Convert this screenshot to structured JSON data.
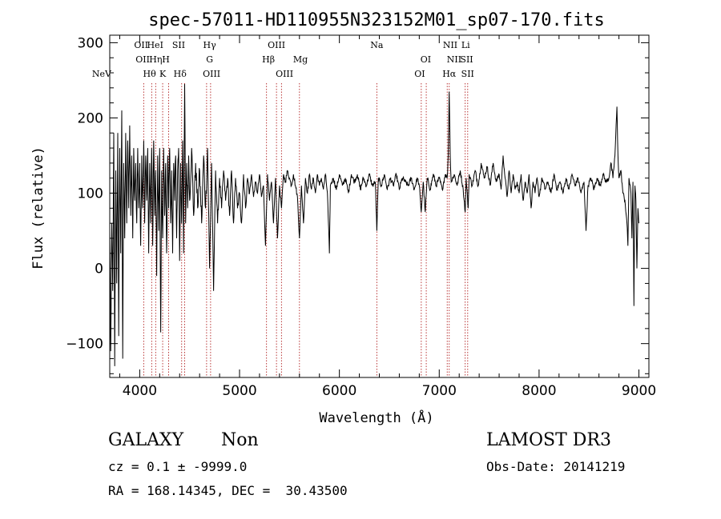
{
  "chart_data": {
    "type": "line",
    "title": "spec-57011-HD110955N323152M01_sp07-170.fits",
    "xlabel": "Wavelength (Å)",
    "ylabel": "Flux (relative)",
    "xlim": [
      3700,
      9100
    ],
    "ylim": [
      -145,
      310
    ],
    "xticks": [
      4000,
      5000,
      6000,
      7000,
      8000,
      9000
    ],
    "yticks": [
      -100,
      0,
      100,
      200,
      300
    ],
    "x_minor_step": 200,
    "y_minor_step": 20,
    "line_color": "#000000",
    "marker_color": "#b22222",
    "lines": [
      {
        "label": "NeV",
        "x": 3426,
        "row": 3
      },
      {
        "label": "OII",
        "x": 4015,
        "row": 1
      },
      {
        "label": "OII",
        "x": 4030,
        "row": 2
      },
      {
        "label": "Hθ",
        "x": 4098,
        "row": 3
      },
      {
        "label": "HeI",
        "x": 4155,
        "row": 1
      },
      {
        "label": "Hη",
        "x": 4160,
        "row": 2
      },
      {
        "label": "K",
        "x": 4230,
        "row": 3
      },
      {
        "label": "H",
        "x": 4262,
        "row": 2
      },
      {
        "label": "SII",
        "x": 4390,
        "row": 1
      },
      {
        "label": "Hδ",
        "x": 4404,
        "row": 3
      },
      {
        "label": "Hγ",
        "x": 4700,
        "row": 1
      },
      {
        "label": "G",
        "x": 4700,
        "row": 2
      },
      {
        "label": "OIII",
        "x": 4720,
        "row": 3
      },
      {
        "label": "OIII",
        "x": 5370,
        "row": 1
      },
      {
        "label": "Hβ",
        "x": 5290,
        "row": 2
      },
      {
        "label": "OIII",
        "x": 5450,
        "row": 3
      },
      {
        "label": "Mg",
        "x": 5610,
        "row": 2
      },
      {
        "label": "Na",
        "x": 6375,
        "row": 1
      },
      {
        "label": "OI",
        "x": 6865,
        "row": 2
      },
      {
        "label": "OI",
        "x": 6805,
        "row": 3
      },
      {
        "label": "NII",
        "x": 7110,
        "row": 1
      },
      {
        "label": "NII",
        "x": 7150,
        "row": 2
      },
      {
        "label": "Hα",
        "x": 7100,
        "row": 3
      },
      {
        "label": "Li",
        "x": 7265,
        "row": 1
      },
      {
        "label": "SII",
        "x": 7275,
        "row": 2
      },
      {
        "label": "SII",
        "x": 7285,
        "row": 3
      }
    ],
    "marker_x": [
      4040,
      4120,
      4160,
      4230,
      4290,
      4420,
      4450,
      4670,
      4710,
      5270,
      5370,
      5420,
      5600,
      6375,
      6820,
      6870,
      7080,
      7100,
      7260,
      7285
    ],
    "spectrum_anchors": [
      [
        3700,
        50
      ],
      [
        3710,
        -110
      ],
      [
        3720,
        60
      ],
      [
        3730,
        -30
      ],
      [
        3740,
        180
      ],
      [
        3750,
        -130
      ],
      [
        3760,
        130
      ],
      [
        3770,
        -20
      ],
      [
        3780,
        180
      ],
      [
        3790,
        -90
      ],
      [
        3800,
        160
      ],
      [
        3810,
        20
      ],
      [
        3820,
        210
      ],
      [
        3830,
        -120
      ],
      [
        3840,
        140
      ],
      [
        3850,
        40
      ],
      [
        3860,
        180
      ],
      [
        3870,
        60
      ],
      [
        3880,
        170
      ],
      [
        3890,
        80
      ],
      [
        3900,
        190
      ],
      [
        3910,
        70
      ],
      [
        3920,
        150
      ],
      [
        3930,
        40
      ],
      [
        3940,
        160
      ],
      [
        3950,
        90
      ],
      [
        3960,
        140
      ],
      [
        3970,
        60
      ],
      [
        3980,
        160
      ],
      [
        3990,
        80
      ],
      [
        4000,
        140
      ],
      [
        4010,
        30
      ],
      [
        4020,
        150
      ],
      [
        4030,
        80
      ],
      [
        4040,
        170
      ],
      [
        4050,
        60
      ],
      [
        4060,
        150
      ],
      [
        4070,
        90
      ],
      [
        4080,
        160
      ],
      [
        4090,
        20
      ],
      [
        4100,
        140
      ],
      [
        4110,
        60
      ],
      [
        4120,
        160
      ],
      [
        4130,
        30
      ],
      [
        4140,
        170
      ],
      [
        4150,
        70
      ],
      [
        4160,
        130
      ],
      [
        4170,
        -10
      ],
      [
        4180,
        150
      ],
      [
        4190,
        50
      ],
      [
        4200,
        160
      ],
      [
        4210,
        -85
      ],
      [
        4220,
        130
      ],
      [
        4230,
        40
      ],
      [
        4240,
        160
      ],
      [
        4250,
        70
      ],
      [
        4260,
        140
      ],
      [
        4270,
        20
      ],
      [
        4280,
        150
      ],
      [
        4290,
        80
      ],
      [
        4300,
        160
      ],
      [
        4310,
        60
      ],
      [
        4320,
        130
      ],
      [
        4330,
        20
      ],
      [
        4340,
        140
      ],
      [
        4350,
        90
      ],
      [
        4360,
        150
      ],
      [
        4370,
        40
      ],
      [
        4380,
        130
      ],
      [
        4390,
        160
      ],
      [
        4400,
        10
      ],
      [
        4410,
        140
      ],
      [
        4420,
        60
      ],
      [
        4430,
        170
      ],
      [
        4440,
        20
      ],
      [
        4450,
        245
      ],
      [
        4460,
        60
      ],
      [
        4470,
        140
      ],
      [
        4480,
        80
      ],
      [
        4490,
        150
      ],
      [
        4500,
        90
      ],
      [
        4520,
        160
      ],
      [
        4540,
        70
      ],
      [
        4560,
        140
      ],
      [
        4580,
        80
      ],
      [
        4600,
        130
      ],
      [
        4620,
        60
      ],
      [
        4640,
        150
      ],
      [
        4660,
        80
      ],
      [
        4680,
        160
      ],
      [
        4700,
        0
      ],
      [
        4720,
        140
      ],
      [
        4740,
        -30
      ],
      [
        4760,
        130
      ],
      [
        4780,
        60
      ],
      [
        4800,
        120
      ],
      [
        4820,
        80
      ],
      [
        4840,
        130
      ],
      [
        4860,
        90
      ],
      [
        4880,
        120
      ],
      [
        4900,
        70
      ],
      [
        4920,
        130
      ],
      [
        4940,
        60
      ],
      [
        4960,
        120
      ],
      [
        4980,
        80
      ],
      [
        5000,
        100
      ],
      [
        5020,
        60
      ],
      [
        5040,
        125
      ],
      [
        5060,
        80
      ],
      [
        5080,
        120
      ],
      [
        5100,
        100
      ],
      [
        5120,
        125
      ],
      [
        5140,
        95
      ],
      [
        5160,
        115
      ],
      [
        5180,
        100
      ],
      [
        5200,
        125
      ],
      [
        5220,
        95
      ],
      [
        5240,
        110
      ],
      [
        5260,
        30
      ],
      [
        5280,
        125
      ],
      [
        5300,
        90
      ],
      [
        5320,
        115
      ],
      [
        5340,
        60
      ],
      [
        5360,
        120
      ],
      [
        5380,
        40
      ],
      [
        5400,
        110
      ],
      [
        5420,
        80
      ],
      [
        5440,
        125
      ],
      [
        5460,
        115
      ],
      [
        5480,
        130
      ],
      [
        5500,
        120
      ],
      [
        5520,
        110
      ],
      [
        5540,
        125
      ],
      [
        5560,
        110
      ],
      [
        5580,
        95
      ],
      [
        5600,
        40
      ],
      [
        5620,
        110
      ],
      [
        5640,
        60
      ],
      [
        5660,
        120
      ],
      [
        5680,
        100
      ],
      [
        5700,
        125
      ],
      [
        5720,
        105
      ],
      [
        5740,
        120
      ],
      [
        5760,
        100
      ],
      [
        5780,
        125
      ],
      [
        5800,
        110
      ],
      [
        5820,
        120
      ],
      [
        5840,
        105
      ],
      [
        5860,
        125
      ],
      [
        5880,
        100
      ],
      [
        5900,
        20
      ],
      [
        5910,
        110
      ],
      [
        5940,
        120
      ],
      [
        5970,
        105
      ],
      [
        6000,
        125
      ],
      [
        6030,
        110
      ],
      [
        6060,
        120
      ],
      [
        6090,
        100
      ],
      [
        6120,
        125
      ],
      [
        6150,
        115
      ],
      [
        6180,
        125
      ],
      [
        6210,
        105
      ],
      [
        6240,
        120
      ],
      [
        6270,
        110
      ],
      [
        6300,
        125
      ],
      [
        6330,
        110
      ],
      [
        6360,
        115
      ],
      [
        6375,
        50
      ],
      [
        6390,
        120
      ],
      [
        6420,
        110
      ],
      [
        6450,
        125
      ],
      [
        6480,
        105
      ],
      [
        6510,
        120
      ],
      [
        6540,
        110
      ],
      [
        6570,
        125
      ],
      [
        6600,
        105
      ],
      [
        6630,
        120
      ],
      [
        6660,
        115
      ],
      [
        6690,
        110
      ],
      [
        6720,
        120
      ],
      [
        6750,
        105
      ],
      [
        6780,
        120
      ],
      [
        6800,
        110
      ],
      [
        6820,
        75
      ],
      [
        6840,
        115
      ],
      [
        6860,
        75
      ],
      [
        6880,
        120
      ],
      [
        6910,
        105
      ],
      [
        6940,
        125
      ],
      [
        6970,
        110
      ],
      [
        7000,
        120
      ],
      [
        7030,
        105
      ],
      [
        7060,
        125
      ],
      [
        7080,
        120
      ],
      [
        7090,
        150
      ],
      [
        7100,
        235
      ],
      [
        7110,
        150
      ],
      [
        7120,
        115
      ],
      [
        7150,
        125
      ],
      [
        7180,
        110
      ],
      [
        7210,
        130
      ],
      [
        7240,
        105
      ],
      [
        7260,
        75
      ],
      [
        7270,
        120
      ],
      [
        7290,
        80
      ],
      [
        7300,
        125
      ],
      [
        7330,
        110
      ],
      [
        7360,
        130
      ],
      [
        7390,
        110
      ],
      [
        7420,
        140
      ],
      [
        7450,
        120
      ],
      [
        7480,
        135
      ],
      [
        7510,
        110
      ],
      [
        7540,
        140
      ],
      [
        7570,
        115
      ],
      [
        7600,
        125
      ],
      [
        7620,
        105
      ],
      [
        7640,
        150
      ],
      [
        7660,
        120
      ],
      [
        7680,
        95
      ],
      [
        7700,
        130
      ],
      [
        7720,
        100
      ],
      [
        7740,
        125
      ],
      [
        7760,
        105
      ],
      [
        7780,
        115
      ],
      [
        7800,
        100
      ],
      [
        7820,
        125
      ],
      [
        7840,
        90
      ],
      [
        7860,
        115
      ],
      [
        7880,
        100
      ],
      [
        7900,
        125
      ],
      [
        7920,
        80
      ],
      [
        7940,
        115
      ],
      [
        7960,
        100
      ],
      [
        7980,
        120
      ],
      [
        8000,
        95
      ],
      [
        8030,
        120
      ],
      [
        8060,
        105
      ],
      [
        8090,
        115
      ],
      [
        8120,
        100
      ],
      [
        8150,
        125
      ],
      [
        8180,
        105
      ],
      [
        8210,
        115
      ],
      [
        8240,
        100
      ],
      [
        8270,
        120
      ],
      [
        8300,
        105
      ],
      [
        8330,
        125
      ],
      [
        8360,
        110
      ],
      [
        8390,
        120
      ],
      [
        8420,
        100
      ],
      [
        8450,
        115
      ],
      [
        8470,
        50
      ],
      [
        8490,
        110
      ],
      [
        8520,
        120
      ],
      [
        8550,
        105
      ],
      [
        8580,
        120
      ],
      [
        8610,
        110
      ],
      [
        8640,
        125
      ],
      [
        8670,
        115
      ],
      [
        8700,
        120
      ],
      [
        8720,
        140
      ],
      [
        8740,
        120
      ],
      [
        8760,
        150
      ],
      [
        8780,
        215
      ],
      [
        8790,
        150
      ],
      [
        8800,
        120
      ],
      [
        8820,
        130
      ],
      [
        8840,
        100
      ],
      [
        8860,
        90
      ],
      [
        8880,
        60
      ],
      [
        8890,
        30
      ],
      [
        8900,
        120
      ],
      [
        8920,
        100
      ],
      [
        8930,
        40
      ],
      [
        8940,
        115
      ],
      [
        8950,
        -50
      ],
      [
        8960,
        110
      ],
      [
        8970,
        90
      ],
      [
        8980,
        0
      ],
      [
        8990,
        80
      ],
      [
        9000,
        60
      ]
    ]
  },
  "info": {
    "obj_class": "GALAXY",
    "subclass": "Non",
    "survey": "LAMOST DR3",
    "cz_line": "cz = 0.1 ± -9999.0",
    "obs_date": "Obs-Date: 20141219",
    "radec": "RA = 168.14345, DEC =  30.43500"
  }
}
